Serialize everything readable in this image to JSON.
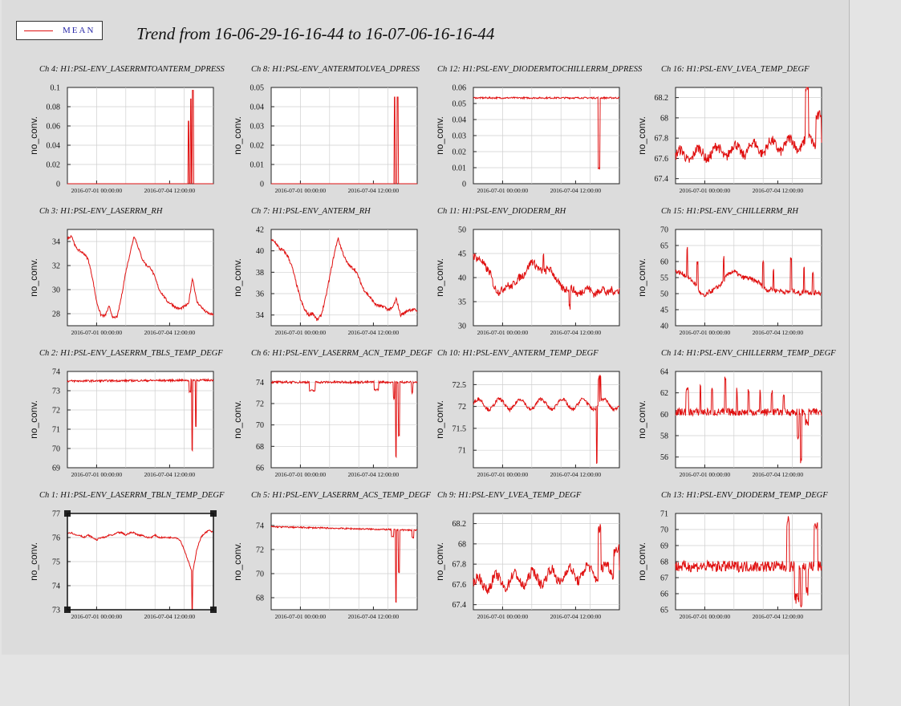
{
  "title": "Trend from 16-06-29-16-16-44 to 16-07-06-16-16-44",
  "legend": {
    "label": "MEAN",
    "color": "#e01010"
  },
  "colors": {
    "trace": "#e01010",
    "grid": "#cfcfcf",
    "background": "#dcdcdc"
  },
  "chart_data": [
    {
      "type": "line",
      "title": "Ch 4: H1:PSL-ENV_LASERRMTOANTERM_DPRESS",
      "ylabel": "no_conv.",
      "ylim": [
        0,
        0.1
      ],
      "yticks": [
        "0",
        "0.02",
        "0.04",
        "0.06",
        "0.08",
        "0.1"
      ],
      "xticks": [
        "2016-07-01 00:00:00",
        "2016-07-04 12:00:00"
      ],
      "grid": true,
      "series": [
        {
          "baseline": 0,
          "noise": 0,
          "features": [
            {
              "at": 0.83,
              "w": 0.004,
              "amp": 0.065
            },
            {
              "at": 0.845,
              "w": 0.004,
              "amp": 0.088
            },
            {
              "at": 0.86,
              "w": 0.004,
              "amp": 0.097
            }
          ]
        }
      ]
    },
    {
      "type": "line",
      "title": "Ch 8: H1:PSL-ENV_ANTERMTOLVEA_DPRESS",
      "ylabel": "no_conv.",
      "ylim": [
        0,
        0.05
      ],
      "yticks": [
        "0",
        "0.01",
        "0.02",
        "0.03",
        "0.04",
        "0.05"
      ],
      "xticks": [
        "2016-07-01 00:00:00",
        "2016-07-04 12:00:00"
      ],
      "grid": true,
      "series": [
        {
          "baseline": 0,
          "noise": 0,
          "features": [
            {
              "at": 0.845,
              "w": 0.004,
              "amp": 0.045
            },
            {
              "at": 0.865,
              "w": 0.004,
              "amp": 0.045
            }
          ]
        }
      ]
    },
    {
      "type": "line",
      "title": "Ch 12: H1:PSL-ENV_DIODERMTOCHILLERRM_DPRESS",
      "ylabel": "no_conv.",
      "ylim": [
        0,
        0.06
      ],
      "yticks": [
        "0",
        "0.01",
        "0.02",
        "0.03",
        "0.04",
        "0.05",
        "0.06"
      ],
      "xticks": [
        "2016-07-01 00:00:00",
        "2016-07-04 12:00:00"
      ],
      "grid": true,
      "series": [
        {
          "baseline": 0.0535,
          "noise": 0.0005,
          "features": [
            {
              "at": 0.86,
              "w": 0.006,
              "amp": -0.044
            }
          ]
        }
      ]
    },
    {
      "type": "line",
      "title": "Ch 16: H1:PSL-ENV_LVEA_TEMP_DEGF",
      "ylabel": "no_conv.",
      "ylim": [
        67.35,
        68.3
      ],
      "yticks": [
        "67.4",
        "67.6",
        "67.8",
        "68",
        "68.2"
      ],
      "xticks": [
        "2016-07-01 00:00:00",
        "2016-07-04 12:00:00"
      ],
      "grid": true,
      "series": [
        {
          "baseline": 67.62,
          "noise": 0.05,
          "wave": 0.06,
          "waves": 8,
          "trend": 0.15,
          "features": [
            {
              "at": 0.9,
              "w": 0.01,
              "amp": 0.5
            },
            {
              "at": 0.98,
              "w": 0.02,
              "amp": 0.3
            }
          ]
        }
      ]
    },
    {
      "type": "line",
      "title": "Ch 3: H1:PSL-ENV_LASERRM_RH",
      "ylabel": "no_conv.",
      "ylim": [
        27,
        35
      ],
      "yticks": [
        "28",
        "30",
        "32",
        "34"
      ],
      "xticks": [
        "2016-07-01 00:00:00",
        "2016-07-04 12:00:00"
      ],
      "grid": true,
      "series": [
        {
          "points": [
            34.2,
            34.5,
            33.5,
            33.2,
            33.0,
            32.5,
            31.0,
            29.0,
            27.9,
            27.8,
            28.6,
            27.6,
            27.8,
            29.5,
            31.5,
            33.0,
            34.5,
            33.5,
            32.5,
            32.0,
            31.8,
            31.0,
            30.0,
            29.5,
            29.0,
            28.8,
            28.5,
            28.4,
            28.6,
            28.8,
            31.0,
            29.0,
            28.6,
            28.2,
            28.0,
            27.9
          ],
          "noise": 0.1
        }
      ]
    },
    {
      "type": "line",
      "title": "Ch 7: H1:PSL-ENV_ANTERM_RH",
      "ylabel": "no_conv.",
      "ylim": [
        33,
        42
      ],
      "yticks": [
        "34",
        "36",
        "38",
        "40",
        "42"
      ],
      "xticks": [
        "2016-07-01 00:00:00",
        "2016-07-04 12:00:00"
      ],
      "grid": true,
      "series": [
        {
          "points": [
            41.0,
            40.8,
            40.2,
            40.0,
            39.5,
            38.5,
            37.0,
            35.5,
            34.5,
            34.0,
            34.2,
            33.5,
            34.0,
            35.5,
            37.5,
            39.5,
            41.2,
            40.0,
            39.0,
            38.5,
            38.3,
            37.5,
            36.5,
            36.0,
            35.5,
            35.0,
            34.8,
            34.8,
            34.5,
            34.6,
            35.5,
            34.0,
            34.2,
            34.5,
            34.5,
            34.4
          ],
          "noise": 0.15
        }
      ]
    },
    {
      "type": "line",
      "title": "Ch 11: H1:PSL-ENV_DIODERM_RH",
      "ylabel": "no_conv.",
      "ylim": [
        30,
        50
      ],
      "yticks": [
        "30",
        "35",
        "40",
        "45",
        "50"
      ],
      "xticks": [
        "2016-07-01 00:00:00",
        "2016-07-04 12:00:00"
      ],
      "grid": true,
      "series": [
        {
          "points": [
            44.5,
            44.0,
            43.5,
            42.0,
            41.0,
            38.0,
            37.0,
            37.5,
            38.5,
            38.0,
            39.0,
            40.0,
            40.5,
            42.0,
            43.5,
            42.5,
            41.5,
            41.0,
            42.0,
            41.0,
            39.5,
            38.0,
            37.5,
            38.0,
            37.5,
            36.5,
            37.0,
            38.0,
            37.5,
            36.5,
            37.0,
            38.0,
            36.5,
            37.5,
            37.0,
            37.5
          ],
          "noise": 0.8,
          "features": [
            {
              "at": 0.48,
              "w": 0.004,
              "amp": 4
            },
            {
              "at": 0.66,
              "w": 0.004,
              "amp": -4
            }
          ]
        }
      ]
    },
    {
      "type": "line",
      "title": "Ch 15: H1:PSL-ENV_CHILLERRM_RH",
      "ylabel": "no_conv.",
      "ylim": [
        40,
        70
      ],
      "yticks": [
        "40",
        "45",
        "50",
        "55",
        "60",
        "65",
        "70"
      ],
      "xticks": [
        "2016-07-01 00:00:00",
        "2016-07-04 12:00:00"
      ],
      "grid": true,
      "series": [
        {
          "points": [
            57.0,
            56.5,
            56.0,
            55.0,
            54.0,
            52.5,
            50.0,
            49.0,
            50.5,
            51.0,
            52.0,
            53.0,
            55.0,
            56.5,
            57.0,
            56.0,
            55.0,
            55.0,
            54.5,
            54.0,
            53.5,
            52.0,
            51.0,
            51.5,
            51.0,
            51.0,
            50.5,
            50.5,
            51.0,
            50.5,
            50.0,
            51.0,
            50.5,
            50.0,
            50.5,
            50.0
          ],
          "noise": 0.7,
          "features": [
            {
              "at": 0.08,
              "w": 0.004,
              "amp": 9
            },
            {
              "at": 0.15,
              "w": 0.004,
              "amp": 8
            },
            {
              "at": 0.33,
              "w": 0.004,
              "amp": 7
            },
            {
              "at": 0.6,
              "w": 0.004,
              "amp": 8
            },
            {
              "at": 0.67,
              "w": 0.004,
              "amp": 6
            },
            {
              "at": 0.79,
              "w": 0.004,
              "amp": 10
            },
            {
              "at": 0.88,
              "w": 0.004,
              "amp": 7
            },
            {
              "at": 0.94,
              "w": 0.004,
              "amp": 6
            }
          ]
        }
      ]
    },
    {
      "type": "line",
      "title": "Ch 2: H1:PSL-ENV_LASERRM_TBLS_TEMP_DEGF",
      "ylabel": "no_conv.",
      "ylim": [
        69,
        74
      ],
      "yticks": [
        "69",
        "70",
        "71",
        "72",
        "73",
        "74"
      ],
      "xticks": [
        "2016-07-01 00:00:00",
        "2016-07-04 12:00:00"
      ],
      "grid": true,
      "series": [
        {
          "baseline": 73.5,
          "noise": 0.05,
          "trend": 0.05,
          "features": [
            {
              "at": 0.84,
              "w": 0.006,
              "amp": -0.6
            },
            {
              "at": 0.855,
              "w": 0.004,
              "amp": -3.6
            },
            {
              "at": 0.88,
              "w": 0.004,
              "amp": -2.4
            }
          ]
        }
      ]
    },
    {
      "type": "line",
      "title": "Ch 6: H1:PSL-ENV_LASERRM_ACN_TEMP_DEGF",
      "ylabel": "no_conv.",
      "ylim": [
        66,
        75
      ],
      "yticks": [
        "66",
        "68",
        "70",
        "72",
        "74"
      ],
      "xticks": [
        "2016-07-01 00:00:00",
        "2016-07-04 12:00:00"
      ],
      "grid": true,
      "series": [
        {
          "baseline": 74.0,
          "noise": 0.1,
          "features": [
            {
              "at": 0.28,
              "w": 0.02,
              "amp": -0.8
            },
            {
              "at": 0.72,
              "w": 0.015,
              "amp": -0.7
            },
            {
              "at": 0.84,
              "w": 0.005,
              "amp": -1.5
            },
            {
              "at": 0.855,
              "w": 0.004,
              "amp": -7.0
            },
            {
              "at": 0.875,
              "w": 0.004,
              "amp": -5
            },
            {
              "at": 0.965,
              "w": 0.005,
              "amp": -1
            }
          ]
        }
      ]
    },
    {
      "type": "line",
      "title": "Ch 10: H1:PSL-ENV_ANTERM_TEMP_DEGF",
      "ylabel": "no_conv.",
      "ylim": [
        70.6,
        72.8
      ],
      "yticks": [
        "71",
        "71.5",
        "72",
        "72.5"
      ],
      "xticks": [
        "2016-07-01 00:00:00",
        "2016-07-04 12:00:00"
      ],
      "grid": true,
      "series": [
        {
          "baseline": 72.05,
          "noise": 0.04,
          "wave": 0.12,
          "waves": 7,
          "features": [
            {
              "at": 0.845,
              "w": 0.004,
              "amp": -1.3
            },
            {
              "at": 0.86,
              "w": 0.005,
              "amp": 0.6
            },
            {
              "at": 0.87,
              "w": 0.004,
              "amp": 0.6
            }
          ]
        }
      ]
    },
    {
      "type": "line",
      "title": "Ch 14: H1:PSL-ENV_CHILLERRM_TEMP_DEGF",
      "ylabel": "no_conv.",
      "ylim": [
        55,
        64
      ],
      "yticks": [
        "56",
        "58",
        "60",
        "62",
        "64"
      ],
      "xticks": [
        "2016-07-01 00:00:00",
        "2016-07-04 12:00:00"
      ],
      "grid": true,
      "series": [
        {
          "baseline": 60.2,
          "noise": 0.35,
          "features": [
            {
              "at": 0.08,
              "w": 0.01,
              "amp": 2
            },
            {
              "at": 0.17,
              "w": 0.004,
              "amp": 2.5
            },
            {
              "at": 0.25,
              "w": 0.004,
              "amp": 2
            },
            {
              "at": 0.34,
              "w": 0.004,
              "amp": 3
            },
            {
              "at": 0.42,
              "w": 0.004,
              "amp": 2
            },
            {
              "at": 0.5,
              "w": 0.004,
              "amp": 2
            },
            {
              "at": 0.58,
              "w": 0.004,
              "amp": 2
            },
            {
              "at": 0.66,
              "w": 0.004,
              "amp": 2
            },
            {
              "at": 0.74,
              "w": 0.004,
              "amp": 1.8
            },
            {
              "at": 0.84,
              "w": 0.006,
              "amp": -2.5
            },
            {
              "at": 0.86,
              "w": 0.004,
              "amp": -4.5
            },
            {
              "at": 0.9,
              "w": 0.01,
              "amp": -1
            }
          ]
        }
      ]
    },
    {
      "type": "line",
      "title": "Ch 1: H1:PSL-ENV_LASERRM_TBLN_TEMP_DEGF",
      "ylabel": "no_conv.",
      "ylim": [
        73,
        77
      ],
      "yticks": [
        "73",
        "74",
        "75",
        "76",
        "77"
      ],
      "xticks": [
        "2016-07-01 00:00:00",
        "2016-07-04 12:00:00"
      ],
      "grid": true,
      "selected": true,
      "series": [
        {
          "points": [
            76.2,
            76.2,
            76.1,
            76.1,
            76.0,
            76.1,
            76.0,
            75.9,
            76.0,
            76.0,
            76.1,
            76.1,
            76.2,
            76.2,
            76.1,
            76.2,
            76.2,
            76.1,
            76.1,
            76.0,
            76.0,
            76.1,
            76.0,
            76.0,
            76.0,
            76.0,
            76.0,
            75.9,
            75.5,
            75.0,
            74.5,
            75.5,
            76.0,
            76.2,
            76.3,
            76.2
          ],
          "noise": 0.03,
          "features": [
            {
              "at": 0.855,
              "w": 0.004,
              "amp": -1.8
            }
          ]
        }
      ]
    },
    {
      "type": "line",
      "title": "Ch 5: H1:PSL-ENV_LASERRM_ACS_TEMP_DEGF",
      "ylabel": "no_conv.",
      "ylim": [
        67,
        75
      ],
      "yticks": [
        "68",
        "70",
        "72",
        "74"
      ],
      "xticks": [
        "2016-07-01 00:00:00",
        "2016-07-04 12:00:00"
      ],
      "grid": true,
      "series": [
        {
          "baseline": 73.9,
          "noise": 0.06,
          "trend": -0.3,
          "features": [
            {
              "at": 0.83,
              "w": 0.008,
              "amp": -0.6
            },
            {
              "at": 0.855,
              "w": 0.004,
              "amp": -6.0
            },
            {
              "at": 0.875,
              "w": 0.004,
              "amp": -3.5
            },
            {
              "at": 0.97,
              "w": 0.006,
              "amp": -0.6
            }
          ]
        }
      ]
    },
    {
      "type": "line",
      "title": "Ch 9: H1:PSL-ENV_LVEA_TEMP_DEGF",
      "ylabel": "no_conv.",
      "ylim": [
        67.35,
        68.3
      ],
      "yticks": [
        "67.4",
        "67.6",
        "67.8",
        "68",
        "68.2"
      ],
      "xticks": [
        "2016-07-01 00:00:00",
        "2016-07-04 12:00:00"
      ],
      "grid": true,
      "series": [
        {
          "baseline": 67.6,
          "noise": 0.05,
          "wave": 0.07,
          "waves": 8,
          "trend": 0.15,
          "features": [
            {
              "at": 0.865,
              "w": 0.01,
              "amp": 0.45
            },
            {
              "at": 0.98,
              "w": 0.02,
              "amp": 0.25
            }
          ]
        }
      ]
    },
    {
      "type": "line",
      "title": "Ch 13: H1:PSL-ENV_DIODERM_TEMP_DEGF",
      "ylabel": "no_conv.",
      "ylim": [
        65,
        71
      ],
      "yticks": [
        "65",
        "66",
        "67",
        "68",
        "69",
        "70",
        "71"
      ],
      "xticks": [
        "2016-07-01 00:00:00",
        "2016-07-04 12:00:00"
      ],
      "grid": true,
      "series": [
        {
          "baseline": 67.7,
          "noise": 0.35,
          "features": [
            {
              "at": 0.77,
              "w": 0.01,
              "amp": 2.8
            },
            {
              "at": 0.83,
              "w": 0.015,
              "amp": -2
            },
            {
              "at": 0.86,
              "w": 0.006,
              "amp": -2.4
            },
            {
              "at": 0.9,
              "w": 0.008,
              "amp": -1.5
            },
            {
              "at": 0.96,
              "w": 0.012,
              "amp": 2.5
            }
          ]
        }
      ]
    }
  ]
}
